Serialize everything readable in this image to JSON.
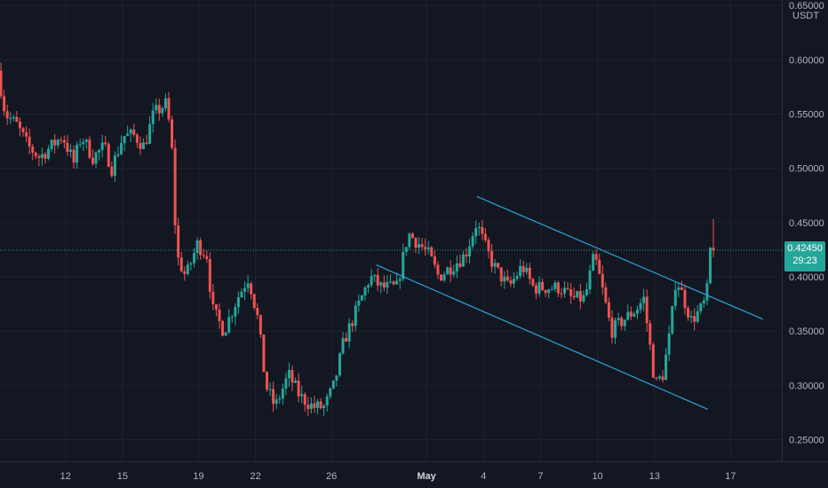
{
  "chart_data": {
    "type": "candlestick",
    "quote_unit": "USDT",
    "ylim": [
      0.23,
      0.655
    ],
    "y_ticks": [
      {
        "value": 0.65,
        "label": "0.65000"
      },
      {
        "value": 0.6,
        "label": "0.60000"
      },
      {
        "value": 0.55,
        "label": "0.55000"
      },
      {
        "value": 0.5,
        "label": "0.50000"
      },
      {
        "value": 0.45,
        "label": "0.45000"
      },
      {
        "value": 0.4,
        "label": "0.40000"
      },
      {
        "value": 0.35,
        "label": "0.35000"
      },
      {
        "value": 0.3,
        "label": "0.30000"
      },
      {
        "value": 0.25,
        "label": "0.25000"
      }
    ],
    "x_ticks": [
      {
        "day": 12,
        "label": "12",
        "month_start": false
      },
      {
        "day": 15,
        "label": "15",
        "month_start": false
      },
      {
        "day": 19,
        "label": "19",
        "month_start": false
      },
      {
        "day": 22,
        "label": "22",
        "month_start": false
      },
      {
        "day": 26,
        "label": "26",
        "month_start": false
      },
      {
        "day": 31,
        "label": "May",
        "month_start": true
      },
      {
        "day": 34,
        "label": "4",
        "month_start": false
      },
      {
        "day": 37,
        "label": "7",
        "month_start": false
      },
      {
        "day": 40,
        "label": "10",
        "month_start": false
      },
      {
        "day": 43,
        "label": "13",
        "month_start": false
      },
      {
        "day": 47,
        "label": "17",
        "month_start": false
      }
    ],
    "xlim": [
      8.55,
      49.7
    ],
    "current_price": {
      "value": 0.4245,
      "label": "0.42450",
      "countdown": "29:23"
    },
    "anchors": [
      [
        8.6,
        0.59
      ],
      [
        9.0,
        0.55
      ],
      [
        9.6,
        0.54
      ],
      [
        10.2,
        0.52
      ],
      [
        10.8,
        0.51
      ],
      [
        11.4,
        0.52
      ],
      [
        12.0,
        0.53
      ],
      [
        12.6,
        0.505
      ],
      [
        13.0,
        0.53
      ],
      [
        13.6,
        0.51
      ],
      [
        14.2,
        0.52
      ],
      [
        14.6,
        0.5
      ],
      [
        15.2,
        0.53
      ],
      [
        15.8,
        0.53
      ],
      [
        16.3,
        0.52
      ],
      [
        16.8,
        0.55
      ],
      [
        17.5,
        0.56
      ],
      [
        17.8,
        0.51
      ],
      [
        18.0,
        0.42
      ],
      [
        18.5,
        0.4
      ],
      [
        19.1,
        0.43
      ],
      [
        19.6,
        0.42
      ],
      [
        19.9,
        0.37
      ],
      [
        20.5,
        0.35
      ],
      [
        21.2,
        0.38
      ],
      [
        21.8,
        0.4
      ],
      [
        22.3,
        0.36
      ],
      [
        22.7,
        0.3
      ],
      [
        23.2,
        0.28
      ],
      [
        23.9,
        0.31
      ],
      [
        24.5,
        0.29
      ],
      [
        25.2,
        0.28
      ],
      [
        25.8,
        0.28
      ],
      [
        26.3,
        0.3
      ],
      [
        26.8,
        0.34
      ],
      [
        27.5,
        0.37
      ],
      [
        28.2,
        0.4
      ],
      [
        28.8,
        0.39
      ],
      [
        29.6,
        0.39
      ],
      [
        30.2,
        0.44
      ],
      [
        30.8,
        0.43
      ],
      [
        31.3,
        0.42
      ],
      [
        31.8,
        0.4
      ],
      [
        32.5,
        0.41
      ],
      [
        33.2,
        0.42
      ],
      [
        33.8,
        0.45
      ],
      [
        34.2,
        0.43
      ],
      [
        34.7,
        0.41
      ],
      [
        35.5,
        0.39
      ],
      [
        36.2,
        0.41
      ],
      [
        36.8,
        0.39
      ],
      [
        37.4,
        0.39
      ],
      [
        38.2,
        0.39
      ],
      [
        38.8,
        0.38
      ],
      [
        39.5,
        0.38
      ],
      [
        40.0,
        0.42
      ],
      [
        40.4,
        0.39
      ],
      [
        40.9,
        0.35
      ],
      [
        41.5,
        0.36
      ],
      [
        42.2,
        0.37
      ],
      [
        42.6,
        0.38
      ],
      [
        42.9,
        0.34
      ],
      [
        43.2,
        0.3
      ],
      [
        43.6,
        0.31
      ],
      [
        44.0,
        0.35
      ],
      [
        44.3,
        0.4
      ],
      [
        44.7,
        0.38
      ],
      [
        45.1,
        0.36
      ],
      [
        45.6,
        0.37
      ],
      [
        45.9,
        0.38
      ],
      [
        46.1,
        0.4245
      ]
    ],
    "channel_lines": [
      {
        "name": "upper",
        "color": "#2fa3d8",
        "from": [
          33.65,
          0.474
        ],
        "to": [
          48.7,
          0.361
        ]
      },
      {
        "name": "lower",
        "color": "#2fa3d8",
        "from": [
          28.35,
          0.411
        ],
        "to": [
          45.8,
          0.278
        ]
      }
    ],
    "colors": {
      "background": "#131722",
      "up": "#26a69a",
      "down": "#ef5350",
      "grid": "#1f2330",
      "price_line": "#2a9d8f",
      "price_label": "#26a69a"
    }
  }
}
